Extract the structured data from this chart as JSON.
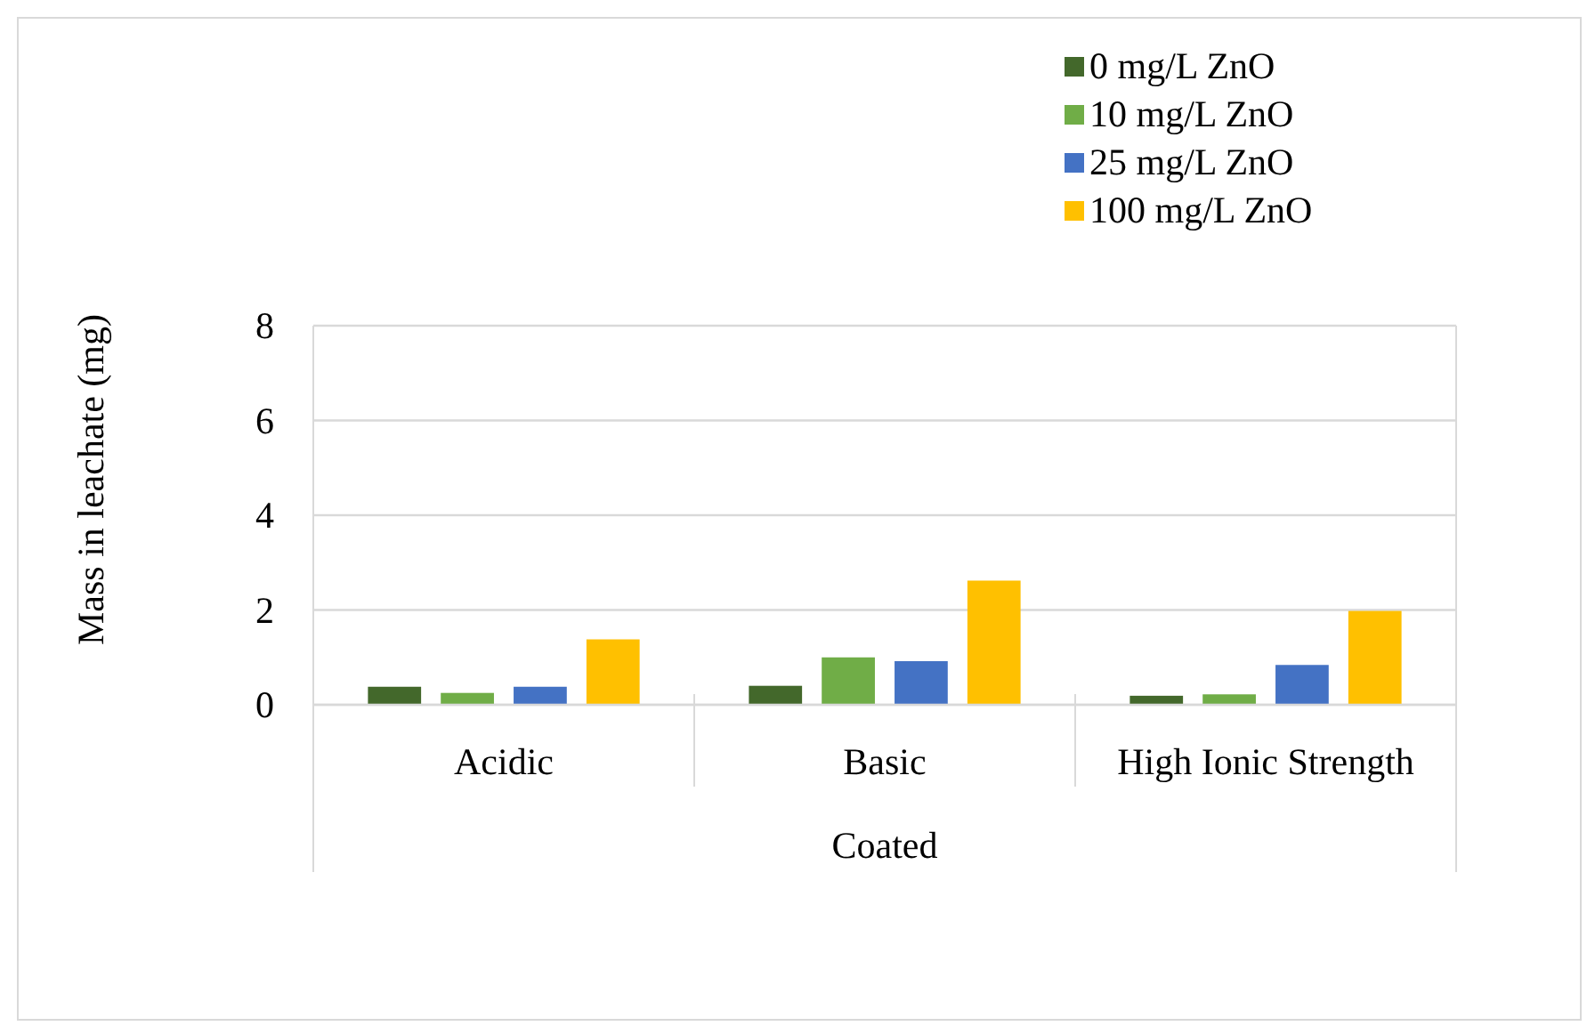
{
  "chart_data": {
    "type": "bar",
    "ylabel": "Mass in leachate (mg)",
    "xlabel": "Coated",
    "categories": [
      "Acidic",
      "Basic",
      "High Ionic Strength"
    ],
    "series": [
      {
        "name": "0 mg/L ZnO",
        "color": "#43682b",
        "values": [
          0.38,
          0.4,
          0.19
        ]
      },
      {
        "name": "10 mg/L ZnO",
        "color": "#70ad47",
        "values": [
          0.25,
          1.0,
          0.22
        ]
      },
      {
        "name": "25 mg/L ZnO",
        "color": "#4472c4",
        "values": [
          0.38,
          0.92,
          0.84
        ]
      },
      {
        "name": "100 mg/L ZnO",
        "color": "#ffc000",
        "values": [
          1.38,
          2.62,
          1.98
        ]
      }
    ],
    "ylim": [
      0,
      8
    ],
    "yticks": [
      0,
      2,
      4,
      6,
      8
    ],
    "grid": "y",
    "legend": "top right"
  }
}
